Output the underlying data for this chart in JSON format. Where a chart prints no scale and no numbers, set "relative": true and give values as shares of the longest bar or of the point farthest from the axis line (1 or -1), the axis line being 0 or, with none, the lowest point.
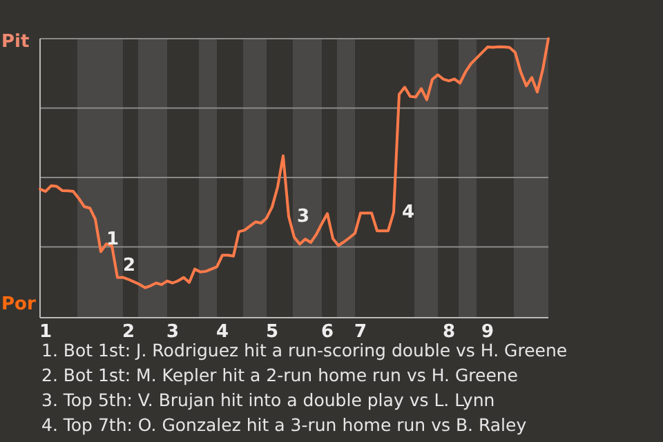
{
  "chart_data": {
    "type": "line",
    "relative": true,
    "categories": [
      null,
      "1",
      null,
      null,
      null,
      null,
      null,
      null,
      null,
      null,
      null,
      null,
      null,
      null,
      null,
      null,
      "2",
      null,
      null,
      null,
      null,
      null,
      null,
      null,
      "3",
      null,
      null,
      null,
      null,
      null,
      null,
      null,
      null,
      "4",
      null,
      null,
      null,
      null,
      null,
      null,
      null,
      null,
      "5",
      null,
      null,
      null,
      null,
      null,
      null,
      null,
      null,
      null,
      "6",
      null,
      null,
      null,
      null,
      null,
      "7",
      null,
      null,
      null,
      null,
      null,
      null,
      null,
      null,
      null,
      null,
      null,
      null,
      null,
      null,
      null,
      "8",
      null,
      null,
      null,
      null,
      null,
      null,
      "9",
      null,
      null,
      null,
      null,
      null,
      null,
      null,
      null,
      null,
      null,
      null
    ],
    "series": [
      {
        "color": "#ff7b4a",
        "values": [
          0.458,
          0.45,
          0.47,
          0.468,
          0.453,
          0.452,
          0.45,
          0.425,
          0.395,
          0.39,
          0.35,
          0.233,
          0.261,
          0.254,
          0.14,
          0.14,
          0.133,
          0.124,
          0.115,
          0.103,
          0.11,
          0.12,
          0.114,
          0.127,
          0.12,
          0.128,
          0.14,
          0.122,
          0.17,
          0.16,
          0.162,
          0.17,
          0.178,
          0.22,
          0.22,
          0.217,
          0.305,
          0.31,
          0.325,
          0.34,
          0.336,
          0.354,
          0.394,
          0.466,
          0.578,
          0.36,
          0.285,
          0.26,
          0.278,
          0.266,
          0.295,
          0.334,
          0.37,
          0.28,
          0.255,
          0.268,
          0.283,
          0.299,
          0.372,
          0.372,
          0.372,
          0.308,
          0.308,
          0.308,
          0.375,
          0.8,
          0.825,
          0.792,
          0.79,
          0.82,
          0.78,
          0.853,
          0.87,
          0.854,
          0.848,
          0.855,
          0.84,
          0.88,
          0.91,
          0.93,
          0.95,
          0.97,
          0.969,
          0.971,
          0.97,
          0.968,
          0.95,
          0.88,
          0.83,
          0.86,
          0.808,
          0.89,
          1
        ]
      }
    ],
    "ref_lines": [
      {
        "axis": "y",
        "value": 0.25,
        "color": "#8c8a88"
      },
      {
        "axis": "y",
        "value": 0.5,
        "color": "#8c8a88"
      },
      {
        "axis": "y",
        "value": 0.75,
        "color": "#8c8a88"
      },
      {
        "axis": "y",
        "value": 1,
        "color": "#8c8a88"
      }
    ],
    "annotations": [
      "1",
      "2",
      "3",
      "4",
      "Pit",
      "Por",
      "1. Bot 1st: J. Rodriguez hit a run-scoring double vs H. Greene",
      "2. Bot 1st: M. Kepler hit a 2-run home run vs H. Greene",
      "3. Top 5th: V. Brujan hit into a double play vs L. Lynn",
      "4. Top 7th: O. Gonzalez hit a 3-run home run vs B. Raley"
    ]
  }
}
